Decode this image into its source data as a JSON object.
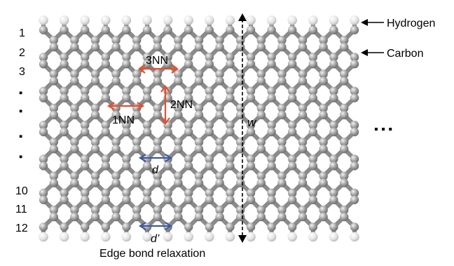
{
  "row_numbers": [
    "1",
    "2",
    "3",
    "10",
    "11",
    "12"
  ],
  "row_ellipsis": [
    "▪",
    "▪",
    "▪",
    "▪"
  ],
  "labels": {
    "hydrogen": "Hydrogen",
    "carbon": "Carbon",
    "nn1": "1NN",
    "nn2": "2NN",
    "nn3": "3NN",
    "width": "w",
    "bond": "d",
    "edge_bond": "d’",
    "caption": "Edge bond relaxation",
    "continuation": "▪  ▪  ▪"
  },
  "colors": {
    "carbon": "#8f8f8f",
    "hydrogen": "#e2e2e2",
    "bond": "#8a8a8a",
    "nn_arrow": "#e05030",
    "bond_arrow": "#3c5aa0",
    "width_arrow": "#000000"
  },
  "lattice": {
    "zigzag_lines": 12,
    "columns": 15
  }
}
